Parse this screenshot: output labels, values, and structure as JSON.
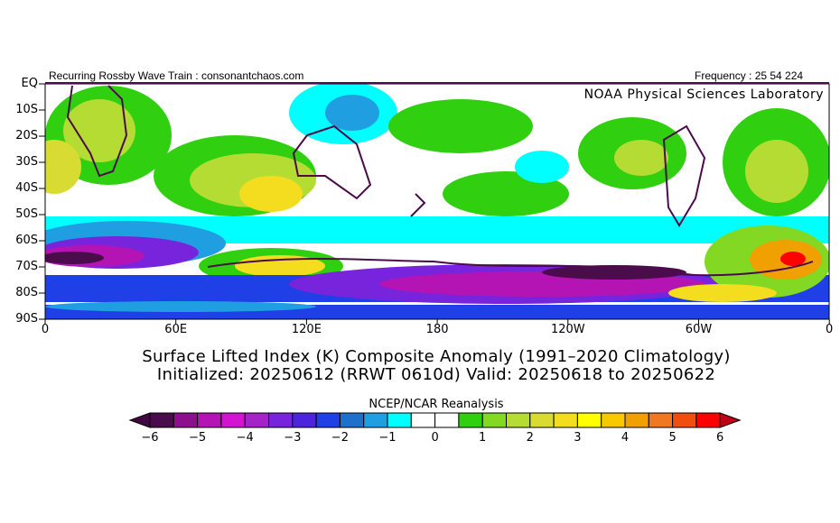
{
  "header": {
    "left": "Recurring Rossby Wave Train : consonantchaos.com",
    "right": "Frequency : 25 54 224"
  },
  "map": {
    "credit": "NOAA Physical Sciences Laboratory",
    "lat_ticks": [
      "EQ",
      "10S",
      "20S",
      "30S",
      "40S",
      "50S",
      "60S",
      "70S",
      "80S",
      "90S"
    ],
    "lon_ticks": [
      "0",
      "60E",
      "120E",
      "180",
      "120W",
      "60W",
      "0"
    ]
  },
  "titles": {
    "line1": "Surface Lifted Index (K) Composite Anomaly (1991–2020 Climatology)",
    "line2": "Initialized: 20250612 (RRWT 0610d) Valid: 20250618 to 20250622"
  },
  "colorbar": {
    "source": "NCEP/NCAR Reanalysis",
    "labels": [
      "−6",
      "−5",
      "−4",
      "−3",
      "−2",
      "−1",
      "0",
      "1",
      "2",
      "3",
      "4",
      "5",
      "6"
    ],
    "under_color": "#400840",
    "over_color": "#c00018",
    "colors": [
      "#4a0c4a",
      "#8c108c",
      "#b414b4",
      "#d214d2",
      "#a424c8",
      "#7824dc",
      "#4c24dc",
      "#1e40e6",
      "#1e70c8",
      "#209ee2",
      "#00ffff",
      "#ffffff",
      "#ffffff",
      "#30d010",
      "#82d822",
      "#b4dc32",
      "#d8dc32",
      "#f4dc1e",
      "#ffff00",
      "#f8c800",
      "#f0a000",
      "#f07820",
      "#f04e10",
      "#ff0000"
    ]
  }
}
